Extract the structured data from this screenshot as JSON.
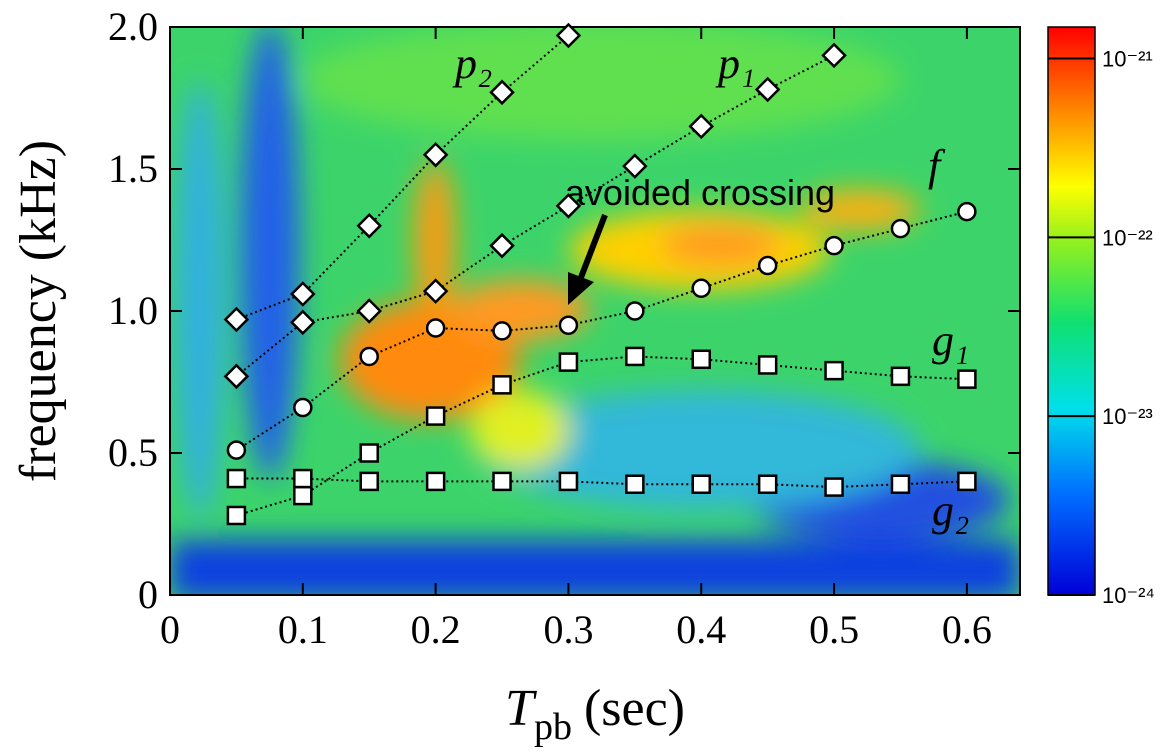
{
  "chart_data": {
    "type": "line",
    "y_label": "frequency (kHz)",
    "x_label": {
      "symbol": "T",
      "subscript": "pb",
      "unit": "(sec)"
    },
    "annotation": "avoided crossing",
    "xlim": [
      0,
      0.64
    ],
    "xticks": [
      0,
      0.1,
      0.2,
      0.3,
      0.4,
      0.5,
      0.6
    ],
    "ylim": [
      0,
      2
    ],
    "yticks": [
      0,
      0.5,
      {
        "value": 1,
        "label": "1.0"
      },
      1.5,
      {
        "value": 2,
        "label": "2.0"
      }
    ],
    "colorbar": {
      "scale": "log",
      "lim": [
        1e-24,
        1.5e-21
      ],
      "ticks": [
        {
          "value": 1e-21,
          "label": "10⁻²¹"
        },
        {
          "value": 1e-22,
          "label": "10⁻²²"
        },
        {
          "value": 1e-23,
          "label": "10⁻²³"
        },
        {
          "value": 1e-24,
          "label": "10⁻²⁴"
        }
      ]
    },
    "line_color": "#000000",
    "series": [
      {
        "name": "p₂",
        "marker": "diamond",
        "x": [
          0.05,
          0.1,
          0.15,
          0.2,
          0.25,
          0.3
        ],
        "values": [
          0.97,
          1.06,
          1.3,
          1.55,
          1.77,
          1.97
        ]
      },
      {
        "name": "p₁",
        "marker": "diamond",
        "x": [
          0.05,
          0.1,
          0.15,
          0.2,
          0.25,
          0.3,
          0.35,
          0.4,
          0.45,
          0.5
        ],
        "values": [
          0.77,
          0.96,
          1.0,
          1.07,
          1.23,
          1.37,
          1.51,
          1.65,
          1.78,
          1.9
        ]
      },
      {
        "name": "f",
        "marker": "circle",
        "x": [
          0.05,
          0.1,
          0.15,
          0.2,
          0.25,
          0.3,
          0.35,
          0.4,
          0.45,
          0.5,
          0.55,
          0.6
        ],
        "values": [
          0.51,
          0.66,
          0.84,
          0.94,
          0.93,
          0.95,
          1.0,
          1.08,
          1.16,
          1.23,
          1.29,
          1.35
        ]
      },
      {
        "name": "g₁",
        "marker": "square",
        "x": [
          0.05,
          0.1,
          0.15,
          0.2,
          0.25,
          0.3,
          0.35,
          0.4,
          0.45,
          0.5,
          0.55,
          0.6
        ],
        "values": [
          0.28,
          0.35,
          0.5,
          0.63,
          0.74,
          0.82,
          0.84,
          0.83,
          0.81,
          0.79,
          0.77,
          0.76
        ]
      },
      {
        "name": "g₂",
        "marker": "square",
        "x": [
          0.05,
          0.1,
          0.15,
          0.2,
          0.25,
          0.3,
          0.35,
          0.4,
          0.45,
          0.5,
          0.55,
          0.6
        ],
        "values": [
          0.41,
          0.41,
          0.4,
          0.4,
          0.4,
          0.4,
          0.39,
          0.39,
          0.39,
          0.38,
          0.39,
          0.4
        ]
      }
    ]
  }
}
